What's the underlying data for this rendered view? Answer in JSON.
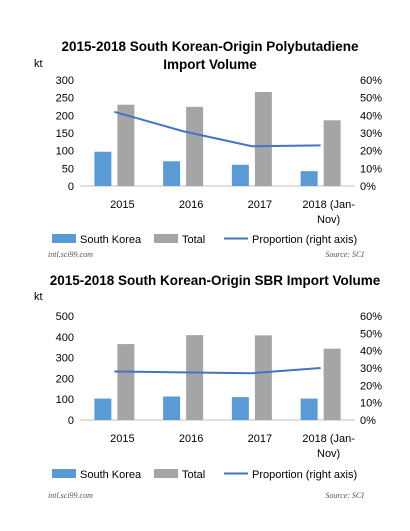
{
  "chart_data": [
    {
      "type": "bar",
      "title": "2015-2018 South Korean-Origin Polybutadiene Import Volume",
      "ylabel": "kt",
      "categories": [
        "2015",
        "2016",
        "2017",
        "2018 (Jan-Nov)"
      ],
      "category_lines": [
        [
          "2015"
        ],
        [
          "2016"
        ],
        [
          "2017"
        ],
        [
          "2018 (Jan-",
          "Nov)"
        ]
      ],
      "ylim": [
        0,
        300
      ],
      "yticks": [
        "0",
        "50",
        "100",
        "150",
        "200",
        "250",
        "300"
      ],
      "y2lim": [
        0,
        60
      ],
      "y2ticks": [
        "0%",
        "10%",
        "20%",
        "30%",
        "40%",
        "50%",
        "60%"
      ],
      "series": [
        {
          "name": "South Korea",
          "type": "bar",
          "color": "#5b9bd5",
          "values": [
            97,
            70,
            60,
            42
          ]
        },
        {
          "name": "Total",
          "type": "bar",
          "color": "#a5a5a5",
          "values": [
            230,
            224,
            266,
            186
          ]
        },
        {
          "name": "Proportion (right axis)",
          "type": "line",
          "axis": "right",
          "color": "#4472c4",
          "values": [
            42,
            31,
            22.5,
            23
          ]
        }
      ],
      "grid": false,
      "legend": "bottom",
      "credit_left": "intl.sci99.com",
      "credit_right": "Source: SCI"
    },
    {
      "type": "bar",
      "title": "2015-2018 South Korean-Origin SBR Import Volume",
      "ylabel": "kt",
      "categories": [
        "2015",
        "2016",
        "2017",
        "2018 (Jan-Nov)"
      ],
      "category_lines": [
        [
          "2015"
        ],
        [
          "2016"
        ],
        [
          "2017"
        ],
        [
          "2018 (Jan-",
          "Nov)"
        ]
      ],
      "ylim": [
        0,
        500
      ],
      "yticks": [
        "0",
        "100",
        "200",
        "300",
        "400",
        "500"
      ],
      "y2lim": [
        0,
        60
      ],
      "y2ticks": [
        "0%",
        "10%",
        "20%",
        "30%",
        "40%",
        "50%",
        "60%"
      ],
      "series": [
        {
          "name": "South Korea",
          "type": "bar",
          "color": "#5b9bd5",
          "values": [
            103,
            113,
            110,
            103
          ]
        },
        {
          "name": "Total",
          "type": "bar",
          "color": "#a5a5a5",
          "values": [
            365,
            408,
            407,
            343
          ]
        },
        {
          "name": "Proportion (right axis)",
          "type": "line",
          "axis": "right",
          "color": "#4472c4",
          "values": [
            28,
            27.5,
            27,
            30
          ]
        }
      ],
      "grid": false,
      "legend": "bottom",
      "credit_left": "intl.sci99.com",
      "credit_right": "Source: SCI"
    }
  ]
}
